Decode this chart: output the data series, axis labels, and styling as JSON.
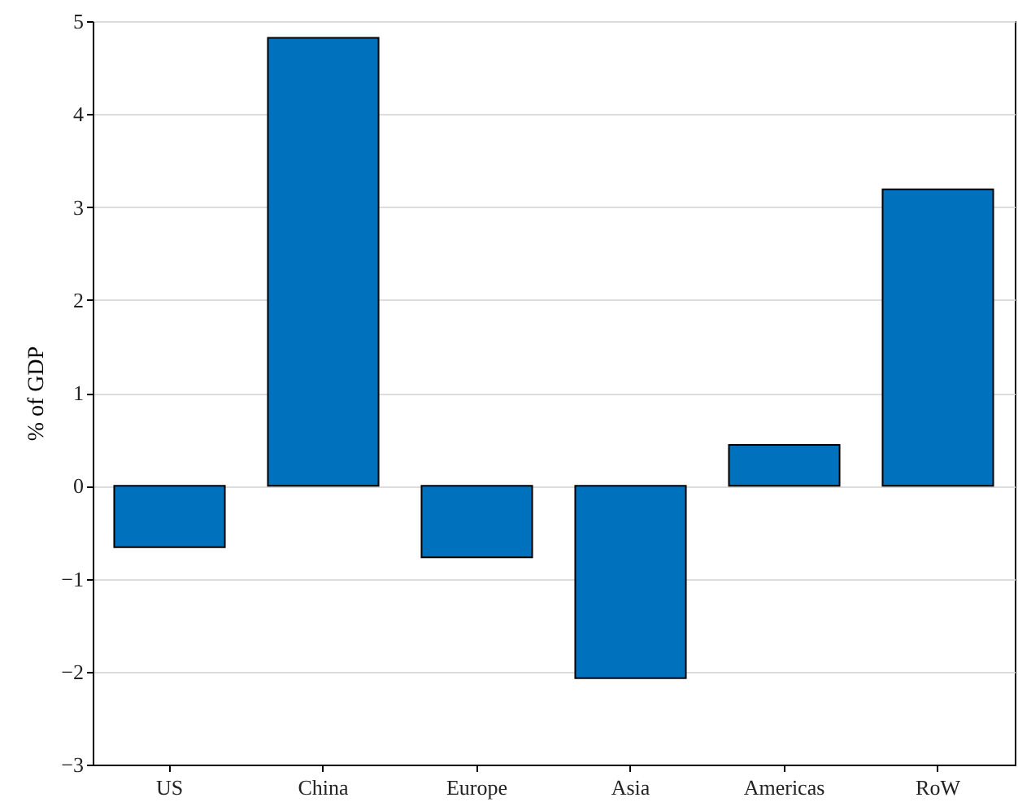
{
  "chart_data": {
    "type": "bar",
    "ylabel": "% of GDP",
    "categories": [
      "US",
      "China",
      "Europe",
      "Asia",
      "Americas",
      "RoW"
    ],
    "values": [
      -0.66,
      4.82,
      -0.77,
      -2.07,
      0.44,
      3.19
    ],
    "color": "#0072bd",
    "ylim": [
      -3,
      5
    ],
    "yticks": [
      -3,
      -2,
      -1,
      0,
      1,
      2,
      3,
      4,
      5
    ],
    "grid": "y"
  }
}
